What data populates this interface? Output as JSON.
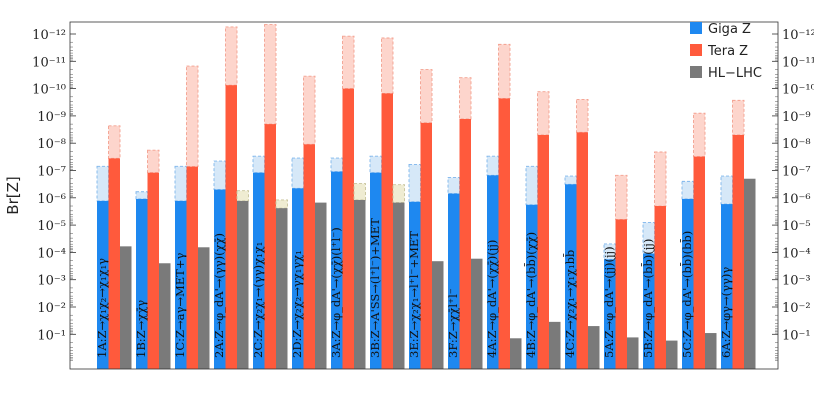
{
  "chart_data": {
    "type": "bar",
    "ylabel": "Br[Z]",
    "ylim": [
      1e-12,
      1
    ],
    "log_scale": true,
    "axis_direction": "inverted",
    "ytick_labels": [
      "10⁻¹²",
      "10⁻¹¹",
      "10⁻¹⁰",
      "10⁻⁹",
      "10⁻⁸",
      "10⁻⁷",
      "10⁻⁶",
      "10⁻⁵",
      "10⁻⁴",
      "10⁻³",
      "10⁻²",
      "10⁻¹"
    ],
    "ytick_exponents": [
      -12,
      -11,
      -10,
      -9,
      -8,
      -7,
      -6,
      -5,
      -4,
      -3,
      -2,
      -1
    ],
    "legend_position": "top-right",
    "colors": {
      "giga_z": "#1e88f0",
      "tera_z": "#ff5a3c",
      "hl_lhc": "#7a7a7a",
      "giga_z_light": "#d6e8f8",
      "tera_z_light": "#fdd5cc",
      "hl_lhc_light": "#efecd2"
    },
    "categories": [
      "1A:Z→χ₁χ₂→χ₁χ₁γ",
      "1B:Z→χχ̄γ",
      "1C:Z→aγ→MET+γ",
      "2A:Z→φ_dA'→(γγ)(χχ̄)",
      "2C:Z→χ₂χ₁→(γγ)χ₁χ₁",
      "2D:Z→χ₂χ₂→γχ₁γχ₁",
      "3A:Z→φ_dA'→(χχ̄)(l⁺l⁻)",
      "3B:Z→A'SS→(l⁺l⁻)+MET",
      "3E:Z→χ₂χ₁→l⁺l⁻+MET",
      "3F:Z→χχ̄l⁺l⁻",
      "4A:Z→φ_dA'→(χχ̄)(jj)",
      "4B:Z→φ_dA'→(bb̄)(χχ̄)",
      "4C:Z→χ₂χ₁→χ₁χ₁bb̄",
      "5A:Z→φ_dA'→(jj)(jj)",
      "5B:Z→φ_dA'→(bb̄)(jj)",
      "5C:Z→φ_dA'→(bb̄)(bb̄)",
      "6A:Z→φγ→(γγ)γ"
    ],
    "series": [
      {
        "name": "Giga Z",
        "values": [
          1.3e-06,
          1.1e-06,
          1.3e-06,
          5e-07,
          1.2e-07,
          4.5e-07,
          1.1e-07,
          1.2e-07,
          1.4e-06,
          7e-07,
          1.5e-07,
          1.8e-06,
          3.2e-07,
          0.00018,
          0.00011,
          1.1e-06,
          1.7e-06
        ],
        "extended": [
          7e-08,
          6e-07,
          7e-08,
          4.5e-08,
          3e-08,
          3.5e-08,
          3.5e-08,
          3e-08,
          6e-08,
          1.8e-07,
          3e-08,
          7e-08,
          1.6e-07,
          4.9e-05,
          8e-06,
          2.5e-07,
          1.6e-07
        ]
      },
      {
        "name": "Tera Z",
        "values": [
          3.6e-08,
          1.2e-07,
          7.2e-08,
          7.5e-11,
          2e-09,
          1.1e-08,
          1e-10,
          1.5e-10,
          1.8e-09,
          1.3e-09,
          2.3e-10,
          5e-09,
          4e-09,
          6.2e-06,
          2e-06,
          3.1e-08,
          5e-09
        ],
        "extended": [
          2.3e-09,
          1.8e-08,
          1.5e-11,
          5.5e-13,
          4.5e-13,
          3.5e-11,
          1.2e-12,
          1.4e-12,
          2e-11,
          4e-11,
          2.4e-12,
          1.3e-10,
          2.5e-10,
          1.5e-07,
          2.1e-08,
          8e-10,
          2.7e-10
        ]
      },
      {
        "name": "HL-LHC",
        "values": [
          6e-05,
          0.00025,
          6.5e-05,
          1.3e-06,
          2.4e-06,
          1.5e-06,
          1.2e-06,
          1.5e-06,
          0.00021,
          0.00017,
          0.14,
          0.035,
          0.05,
          0.13,
          0.17,
          0.09,
          2e-07
        ],
        "extended": [
          null,
          null,
          null,
          5.5e-07,
          1.2e-06,
          null,
          3e-07,
          3.3e-07,
          null,
          null,
          null,
          null,
          null,
          null,
          null,
          null,
          null
        ]
      }
    ]
  },
  "legend": {
    "items": [
      {
        "label": "Giga Z",
        "color": "#1e88f0"
      },
      {
        "label": "Tera Z",
        "color": "#ff5a3c"
      },
      {
        "label": "HL−LHC",
        "color": "#7a7a7a"
      }
    ]
  }
}
